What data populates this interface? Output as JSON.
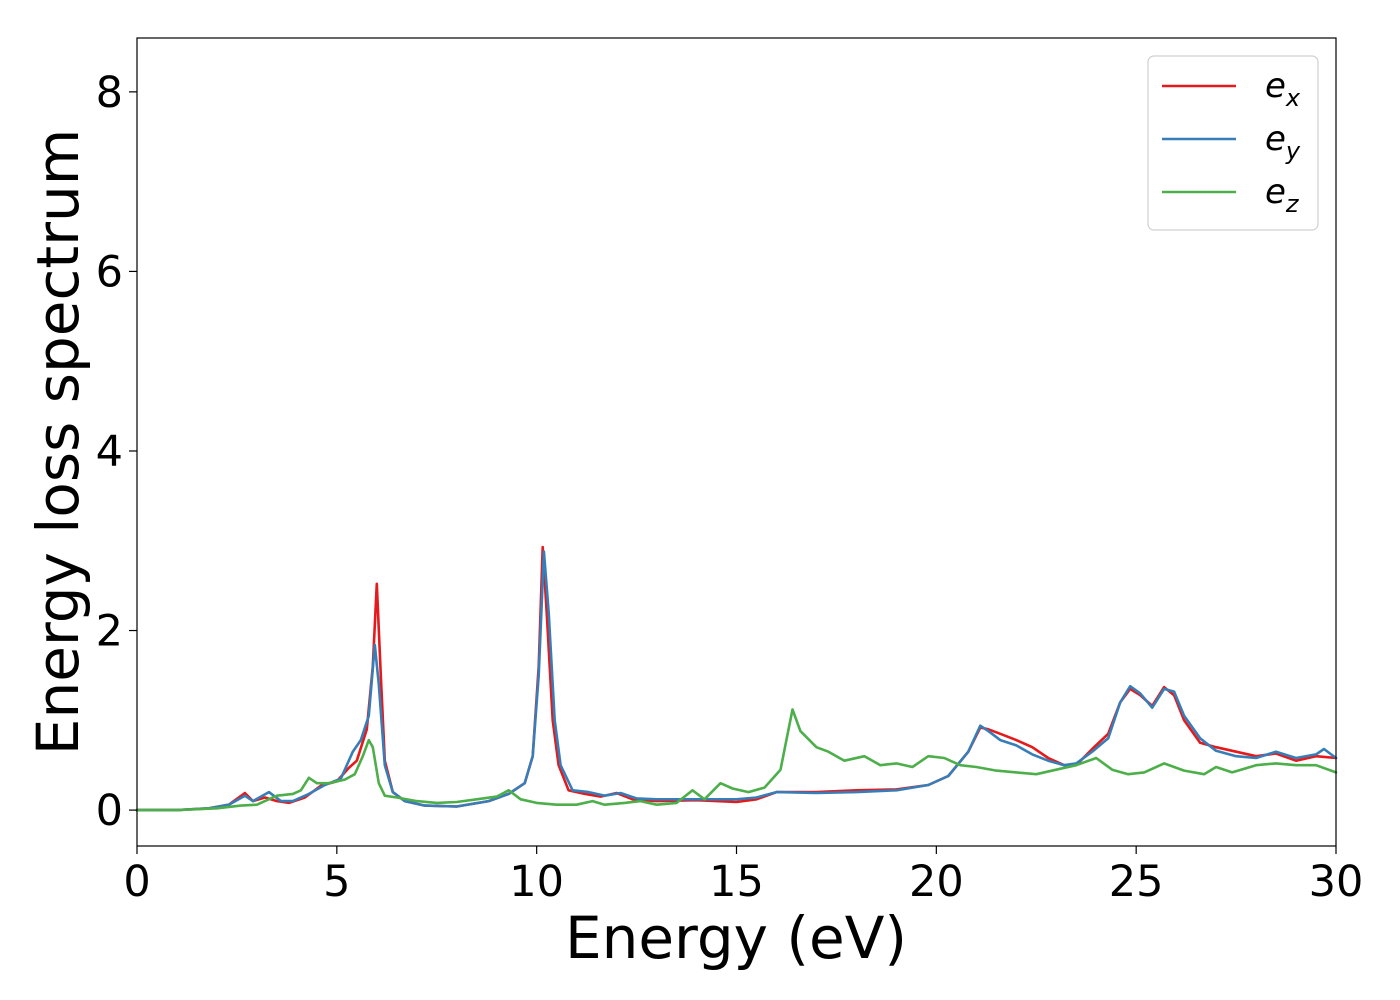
{
  "chart_data": {
    "type": "line",
    "title": "",
    "xlabel": "Energy (eV)",
    "ylabel": "Energy loss spectrum",
    "xlim": [
      0,
      30
    ],
    "ylim": [
      -0.4,
      8.6
    ],
    "xticks": [
      "0",
      "5",
      "10",
      "15",
      "20",
      "25",
      "30"
    ],
    "xtick_values": [
      0,
      5,
      10,
      15,
      20,
      25,
      30
    ],
    "yticks": [
      "0",
      "2",
      "4",
      "6",
      "8"
    ],
    "ytick_values": [
      0,
      2,
      4,
      6,
      8
    ],
    "grid": false,
    "legend_position": "top-right",
    "series": [
      {
        "name": "e",
        "subscript": "x",
        "color": "#e41a1c",
        "points": [
          [
            0,
            0
          ],
          [
            1,
            0
          ],
          [
            1.8,
            0.02
          ],
          [
            2.3,
            0.06
          ],
          [
            2.7,
            0.19
          ],
          [
            2.9,
            0.1
          ],
          [
            3.2,
            0.14
          ],
          [
            3.5,
            0.1
          ],
          [
            3.8,
            0.08
          ],
          [
            4.2,
            0.14
          ],
          [
            4.6,
            0.27
          ],
          [
            5.0,
            0.32
          ],
          [
            5.3,
            0.47
          ],
          [
            5.5,
            0.55
          ],
          [
            5.75,
            0.9
          ],
          [
            5.9,
            1.6
          ],
          [
            6.0,
            2.52
          ],
          [
            6.1,
            1.5
          ],
          [
            6.2,
            0.55
          ],
          [
            6.4,
            0.2
          ],
          [
            6.7,
            0.1
          ],
          [
            7.2,
            0.05
          ],
          [
            8,
            0.04
          ],
          [
            8.8,
            0.1
          ],
          [
            9.3,
            0.18
          ],
          [
            9.7,
            0.3
          ],
          [
            9.9,
            0.6
          ],
          [
            10.05,
            1.6
          ],
          [
            10.15,
            2.93
          ],
          [
            10.25,
            2.2
          ],
          [
            10.4,
            1.0
          ],
          [
            10.55,
            0.5
          ],
          [
            10.8,
            0.22
          ],
          [
            11.2,
            0.18
          ],
          [
            11.6,
            0.15
          ],
          [
            12,
            0.19
          ],
          [
            12.4,
            0.12
          ],
          [
            13,
            0.1
          ],
          [
            14,
            0.11
          ],
          [
            15,
            0.09
          ],
          [
            15.5,
            0.12
          ],
          [
            16,
            0.2
          ],
          [
            17,
            0.2
          ],
          [
            18,
            0.22
          ],
          [
            19,
            0.23
          ],
          [
            19.8,
            0.28
          ],
          [
            20.3,
            0.38
          ],
          [
            20.8,
            0.65
          ],
          [
            21.1,
            0.92
          ],
          [
            21.3,
            0.9
          ],
          [
            21.6,
            0.85
          ],
          [
            22,
            0.78
          ],
          [
            22.4,
            0.7
          ],
          [
            22.8,
            0.58
          ],
          [
            23.2,
            0.5
          ],
          [
            23.5,
            0.5
          ],
          [
            23.9,
            0.68
          ],
          [
            24.3,
            0.85
          ],
          [
            24.6,
            1.2
          ],
          [
            24.85,
            1.35
          ],
          [
            25.1,
            1.28
          ],
          [
            25.4,
            1.16
          ],
          [
            25.7,
            1.37
          ],
          [
            25.95,
            1.28
          ],
          [
            26.2,
            1.0
          ],
          [
            26.6,
            0.75
          ],
          [
            27,
            0.7
          ],
          [
            27.5,
            0.65
          ],
          [
            28,
            0.6
          ],
          [
            28.5,
            0.63
          ],
          [
            29,
            0.55
          ],
          [
            29.5,
            0.6
          ],
          [
            30,
            0.58
          ]
        ]
      },
      {
        "name": "e",
        "subscript": "y",
        "color": "#377eb8",
        "points": [
          [
            0,
            0
          ],
          [
            1,
            0
          ],
          [
            1.8,
            0.02
          ],
          [
            2.3,
            0.06
          ],
          [
            2.7,
            0.16
          ],
          [
            2.9,
            0.1
          ],
          [
            3.3,
            0.2
          ],
          [
            3.6,
            0.1
          ],
          [
            3.9,
            0.1
          ],
          [
            4.3,
            0.18
          ],
          [
            4.7,
            0.28
          ],
          [
            5.1,
            0.35
          ],
          [
            5.4,
            0.65
          ],
          [
            5.6,
            0.78
          ],
          [
            5.8,
            1.05
          ],
          [
            5.95,
            1.84
          ],
          [
            6.05,
            1.4
          ],
          [
            6.2,
            0.5
          ],
          [
            6.4,
            0.2
          ],
          [
            6.7,
            0.1
          ],
          [
            7.2,
            0.05
          ],
          [
            8,
            0.04
          ],
          [
            8.8,
            0.1
          ],
          [
            9.3,
            0.18
          ],
          [
            9.7,
            0.3
          ],
          [
            9.9,
            0.6
          ],
          [
            10.05,
            1.5
          ],
          [
            10.18,
            2.88
          ],
          [
            10.3,
            2.2
          ],
          [
            10.45,
            1.0
          ],
          [
            10.6,
            0.5
          ],
          [
            10.9,
            0.22
          ],
          [
            11.3,
            0.2
          ],
          [
            11.7,
            0.16
          ],
          [
            12.1,
            0.19
          ],
          [
            12.5,
            0.13
          ],
          [
            13,
            0.12
          ],
          [
            14,
            0.12
          ],
          [
            15,
            0.12
          ],
          [
            15.5,
            0.14
          ],
          [
            16,
            0.2
          ],
          [
            17,
            0.19
          ],
          [
            18,
            0.2
          ],
          [
            19,
            0.22
          ],
          [
            19.8,
            0.28
          ],
          [
            20.3,
            0.38
          ],
          [
            20.8,
            0.65
          ],
          [
            21.1,
            0.94
          ],
          [
            21.3,
            0.88
          ],
          [
            21.6,
            0.78
          ],
          [
            22,
            0.72
          ],
          [
            22.4,
            0.62
          ],
          [
            22.8,
            0.55
          ],
          [
            23.2,
            0.5
          ],
          [
            23.5,
            0.52
          ],
          [
            23.9,
            0.65
          ],
          [
            24.3,
            0.8
          ],
          [
            24.6,
            1.2
          ],
          [
            24.85,
            1.38
          ],
          [
            25.1,
            1.3
          ],
          [
            25.4,
            1.14
          ],
          [
            25.7,
            1.35
          ],
          [
            25.95,
            1.32
          ],
          [
            26.2,
            1.05
          ],
          [
            26.6,
            0.8
          ],
          [
            27,
            0.66
          ],
          [
            27.5,
            0.6
          ],
          [
            28,
            0.58
          ],
          [
            28.5,
            0.65
          ],
          [
            29,
            0.58
          ],
          [
            29.5,
            0.62
          ],
          [
            29.7,
            0.68
          ],
          [
            30,
            0.58
          ]
        ]
      },
      {
        "name": "e",
        "subscript": "z",
        "color": "#4daf4a",
        "points": [
          [
            0,
            0
          ],
          [
            1,
            0
          ],
          [
            2,
            0.02
          ],
          [
            2.6,
            0.05
          ],
          [
            3,
            0.06
          ],
          [
            3.5,
            0.16
          ],
          [
            3.9,
            0.18
          ],
          [
            4.1,
            0.22
          ],
          [
            4.3,
            0.36
          ],
          [
            4.5,
            0.3
          ],
          [
            4.8,
            0.3
          ],
          [
            5.2,
            0.34
          ],
          [
            5.45,
            0.4
          ],
          [
            5.65,
            0.6
          ],
          [
            5.8,
            0.78
          ],
          [
            5.9,
            0.7
          ],
          [
            6.05,
            0.3
          ],
          [
            6.2,
            0.16
          ],
          [
            6.5,
            0.14
          ],
          [
            7,
            0.1
          ],
          [
            7.5,
            0.08
          ],
          [
            8,
            0.09
          ],
          [
            8.5,
            0.12
          ],
          [
            9,
            0.15
          ],
          [
            9.3,
            0.22
          ],
          [
            9.6,
            0.12
          ],
          [
            10,
            0.08
          ],
          [
            10.5,
            0.06
          ],
          [
            11,
            0.06
          ],
          [
            11.4,
            0.1
          ],
          [
            11.7,
            0.06
          ],
          [
            12.2,
            0.08
          ],
          [
            12.6,
            0.1
          ],
          [
            13,
            0.06
          ],
          [
            13.5,
            0.08
          ],
          [
            13.9,
            0.22
          ],
          [
            14.2,
            0.12
          ],
          [
            14.6,
            0.3
          ],
          [
            14.9,
            0.24
          ],
          [
            15.3,
            0.2
          ],
          [
            15.7,
            0.25
          ],
          [
            16.1,
            0.45
          ],
          [
            16.4,
            1.12
          ],
          [
            16.6,
            0.88
          ],
          [
            17,
            0.7
          ],
          [
            17.3,
            0.65
          ],
          [
            17.7,
            0.55
          ],
          [
            18.2,
            0.6
          ],
          [
            18.6,
            0.5
          ],
          [
            19,
            0.52
          ],
          [
            19.4,
            0.48
          ],
          [
            19.8,
            0.6
          ],
          [
            20.2,
            0.58
          ],
          [
            20.6,
            0.5
          ],
          [
            21,
            0.48
          ],
          [
            21.5,
            0.44
          ],
          [
            22,
            0.42
          ],
          [
            22.5,
            0.4
          ],
          [
            23,
            0.45
          ],
          [
            23.5,
            0.5
          ],
          [
            24,
            0.58
          ],
          [
            24.4,
            0.45
          ],
          [
            24.8,
            0.4
          ],
          [
            25.2,
            0.42
          ],
          [
            25.7,
            0.52
          ],
          [
            26.2,
            0.44
          ],
          [
            26.7,
            0.4
          ],
          [
            27,
            0.48
          ],
          [
            27.4,
            0.42
          ],
          [
            28,
            0.5
          ],
          [
            28.5,
            0.52
          ],
          [
            29,
            0.5
          ],
          [
            29.5,
            0.5
          ],
          [
            30,
            0.42
          ]
        ]
      }
    ]
  }
}
